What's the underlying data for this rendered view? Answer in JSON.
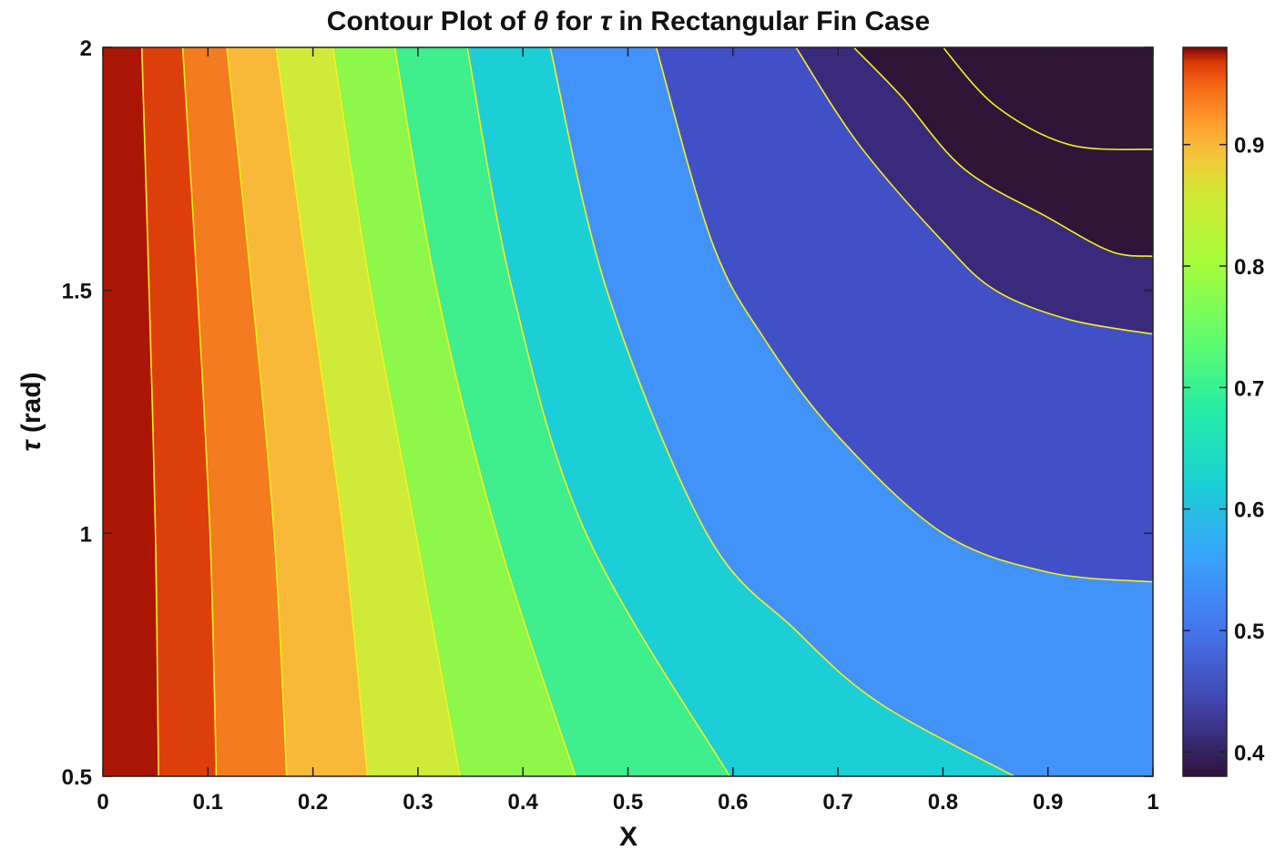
{
  "chart_data": {
    "type": "contour",
    "title_parts": [
      "Contour Plot of ",
      "θ",
      " for ",
      "τ",
      " in Rectangular Fin Case"
    ],
    "xlabel": "X",
    "ylabel_symbol": "τ",
    "ylabel_unit": " (rad)",
    "xlim": [
      0,
      1
    ],
    "ylim": [
      0.5,
      2
    ],
    "x_ticks": [
      "0",
      "0.1",
      "0.2",
      "0.3",
      "0.4",
      "0.5",
      "0.6",
      "0.7",
      "0.8",
      "0.9",
      "1"
    ],
    "y_ticks": [
      "0.5",
      "1",
      "1.5",
      "2"
    ],
    "colorbar": {
      "range": [
        0.38,
        0.98
      ],
      "ticks": [
        "0.4",
        "0.5",
        "0.6",
        "0.7",
        "0.8",
        "0.9"
      ],
      "colormap": "turbo"
    },
    "contour_line_color": "#f5f01e",
    "levels": [
      {
        "fill": "#ab1604"
      },
      {
        "fill": "#dd3f0b"
      },
      {
        "fill": "#f47b20"
      },
      {
        "fill": "#f9b938"
      },
      {
        "fill": "#cfea38"
      },
      {
        "fill": "#8df74a"
      },
      {
        "fill": "#3fee8c"
      },
      {
        "fill": "#1ccfd6"
      },
      {
        "fill": "#4193fa"
      },
      {
        "fill": "#4250c7"
      },
      {
        "fill": "#3a2a7b"
      },
      {
        "fill": "#2f1538"
      }
    ],
    "boundaries": [
      [
        [
          0.037,
          2.0
        ],
        [
          0.044,
          1.5
        ],
        [
          0.05,
          1.0
        ],
        [
          0.053,
          0.5
        ]
      ],
      [
        [
          0.076,
          2.0
        ],
        [
          0.09,
          1.5
        ],
        [
          0.102,
          1.0
        ],
        [
          0.108,
          0.5
        ]
      ],
      [
        [
          0.118,
          2.0
        ],
        [
          0.142,
          1.5
        ],
        [
          0.163,
          1.0
        ],
        [
          0.175,
          0.5
        ]
      ],
      [
        [
          0.165,
          2.0
        ],
        [
          0.197,
          1.5
        ],
        [
          0.229,
          1.0
        ],
        [
          0.252,
          0.5
        ]
      ],
      [
        [
          0.219,
          2.0
        ],
        [
          0.255,
          1.5
        ],
        [
          0.298,
          1.0
        ],
        [
          0.34,
          0.5
        ]
      ],
      [
        [
          0.278,
          2.0
        ],
        [
          0.318,
          1.5
        ],
        [
          0.375,
          1.0
        ],
        [
          0.45,
          0.5
        ]
      ],
      [
        [
          0.347,
          2.0
        ],
        [
          0.39,
          1.5
        ],
        [
          0.46,
          1.0
        ],
        [
          0.597,
          0.5
        ]
      ],
      [
        [
          0.426,
          2.0
        ],
        [
          0.48,
          1.5
        ],
        [
          0.575,
          1.0
        ],
        [
          0.66,
          0.8
        ],
        [
          0.74,
          0.65
        ],
        [
          0.868,
          0.5
        ]
      ],
      [
        [
          0.527,
          2.0
        ],
        [
          0.58,
          1.6
        ],
        [
          0.63,
          1.4
        ],
        [
          0.7,
          1.2
        ],
        [
          0.8,
          1.0
        ],
        [
          0.9,
          0.92
        ],
        [
          1.0,
          0.9
        ]
      ],
      [
        [
          0.66,
          2.0
        ],
        [
          0.72,
          1.8
        ],
        [
          0.8,
          1.6
        ],
        [
          0.85,
          1.5
        ],
        [
          0.92,
          1.44
        ],
        [
          1.0,
          1.41
        ]
      ],
      [
        [
          0.715,
          2.0
        ],
        [
          0.76,
          1.9
        ],
        [
          0.82,
          1.75
        ],
        [
          0.9,
          1.65
        ],
        [
          0.96,
          1.58
        ],
        [
          1.0,
          1.57
        ]
      ],
      [
        [
          0.8,
          2.0
        ],
        [
          0.85,
          1.88
        ],
        [
          0.92,
          1.8
        ],
        [
          1.0,
          1.79
        ]
      ]
    ]
  }
}
